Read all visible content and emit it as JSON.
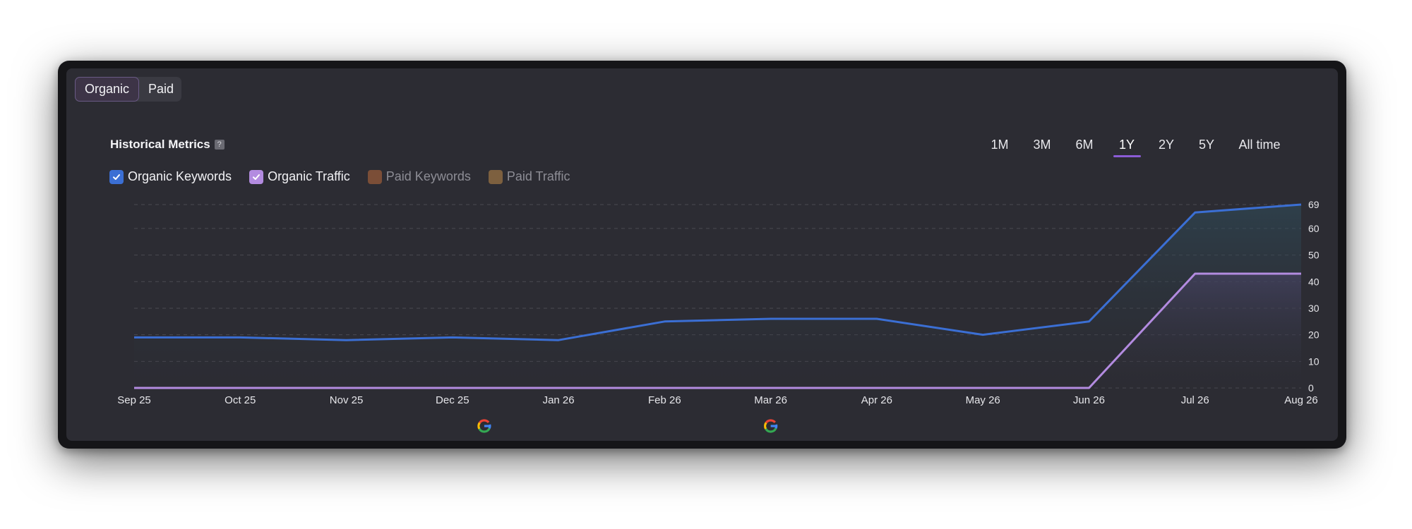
{
  "tabs": [
    {
      "label": "Organic",
      "active": true
    },
    {
      "label": "Paid",
      "active": false
    }
  ],
  "title": "Historical Metrics",
  "help_glyph": "?",
  "time_ranges": [
    {
      "label": "1M",
      "active": false
    },
    {
      "label": "3M",
      "active": false
    },
    {
      "label": "6M",
      "active": false
    },
    {
      "label": "1Y",
      "active": true
    },
    {
      "label": "2Y",
      "active": false
    },
    {
      "label": "5Y",
      "active": false
    },
    {
      "label": "All time",
      "active": false
    }
  ],
  "legend": [
    {
      "label": "Organic Keywords",
      "checked": true,
      "color": "#3b6fd4"
    },
    {
      "label": "Organic Traffic",
      "checked": true,
      "color": "#b38be0"
    },
    {
      "label": "Paid Keywords",
      "checked": false,
      "color": "#8a5538"
    },
    {
      "label": "Paid Traffic",
      "checked": false,
      "color": "#8c6a42"
    }
  ],
  "chart_data": {
    "type": "line",
    "categories": [
      "Sep 25",
      "Oct 25",
      "Nov 25",
      "Dec 25",
      "Jan 26",
      "Feb 26",
      "Mar 26",
      "Apr 26",
      "May 26",
      "Jun 26",
      "Jul 26",
      "Aug 26"
    ],
    "series": [
      {
        "name": "Organic Keywords",
        "color": "#3b6fd4",
        "values": [
          19,
          19,
          18,
          19,
          18,
          25,
          26,
          26,
          20,
          25,
          66,
          69
        ]
      },
      {
        "name": "Organic Traffic",
        "color": "#b38be0",
        "values": [
          0,
          0,
          0,
          0,
          0,
          0,
          0,
          0,
          0,
          0,
          43,
          43
        ]
      }
    ],
    "y_ticks": [
      0,
      10,
      20,
      30,
      40,
      50,
      60,
      69
    ],
    "ylim": [
      0,
      69
    ],
    "y_axis_position": "right",
    "grid": true,
    "annotations": [
      {
        "x": "Dec 25",
        "offset_fraction": 0.9,
        "icon": "google-icon"
      },
      {
        "x": "Mar 26",
        "offset_fraction": 0.0,
        "icon": "google-icon"
      }
    ]
  }
}
